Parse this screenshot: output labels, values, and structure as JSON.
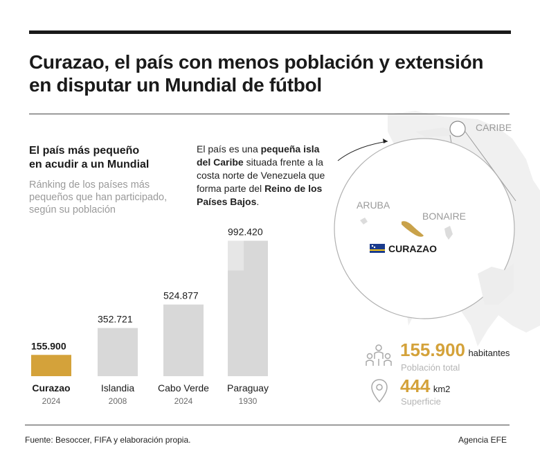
{
  "header": {
    "title_line1": "Curazao, el país con menos población y extensión",
    "title_line2": "en disputar un Mundial de fútbol"
  },
  "chart_section": {
    "heading_line1": "El país más pequeño",
    "heading_line2": "en acudir a un Mundial",
    "subtitle_line1": "Ránking de los países más",
    "subtitle_line2": "pequeños que han participado,",
    "subtitle_line3": "según su población"
  },
  "chart_data": {
    "type": "bar",
    "title": "El país más pequeño en acudir a un Mundial",
    "subtitle": "Ránking de los países más pequeños que han participado, según su población",
    "categories": [
      "Curazao",
      "Islandia",
      "Cabo Verde",
      "Paraguay"
    ],
    "years": [
      "2024",
      "2008",
      "2024",
      "1930"
    ],
    "values": [
      155900,
      352721,
      524877,
      992420
    ],
    "value_labels": [
      "155.900",
      "352.721",
      "524.877",
      "992.420"
    ],
    "highlight": "Curazao",
    "ylim": [
      0,
      1000000
    ],
    "grid": false,
    "colors": {
      "highlight": "#d4a23a",
      "default": "#d8d8d8",
      "paraguay_inner": "#e6e6e6"
    }
  },
  "intro": {
    "p1": "El país es una ",
    "b1": "pequeña isla del Caribe",
    "p2": " situada frente a la costa norte de Venezuela que forma parte del ",
    "b2": "Reino de los Países Bajos",
    "p3": "."
  },
  "map": {
    "region_label": "CARIBE",
    "aruba_label": "ARUBA",
    "bonaire_label": "BONAIRE",
    "curacao_label": "CURAZAO",
    "colors": {
      "island": "#c9a24a",
      "flag_blue": "#1a3b8c",
      "flag_yellow": "#f5c518"
    }
  },
  "stats": {
    "population_value": "155.900",
    "population_unit": "habitantes",
    "population_label": "Población total",
    "area_value": "444",
    "area_unit": "km2",
    "area_label": "Superficie"
  },
  "footer": {
    "source": "Fuente: Besoccer, FIFA y elaboración propia.",
    "agency": "Agencia EFE"
  }
}
